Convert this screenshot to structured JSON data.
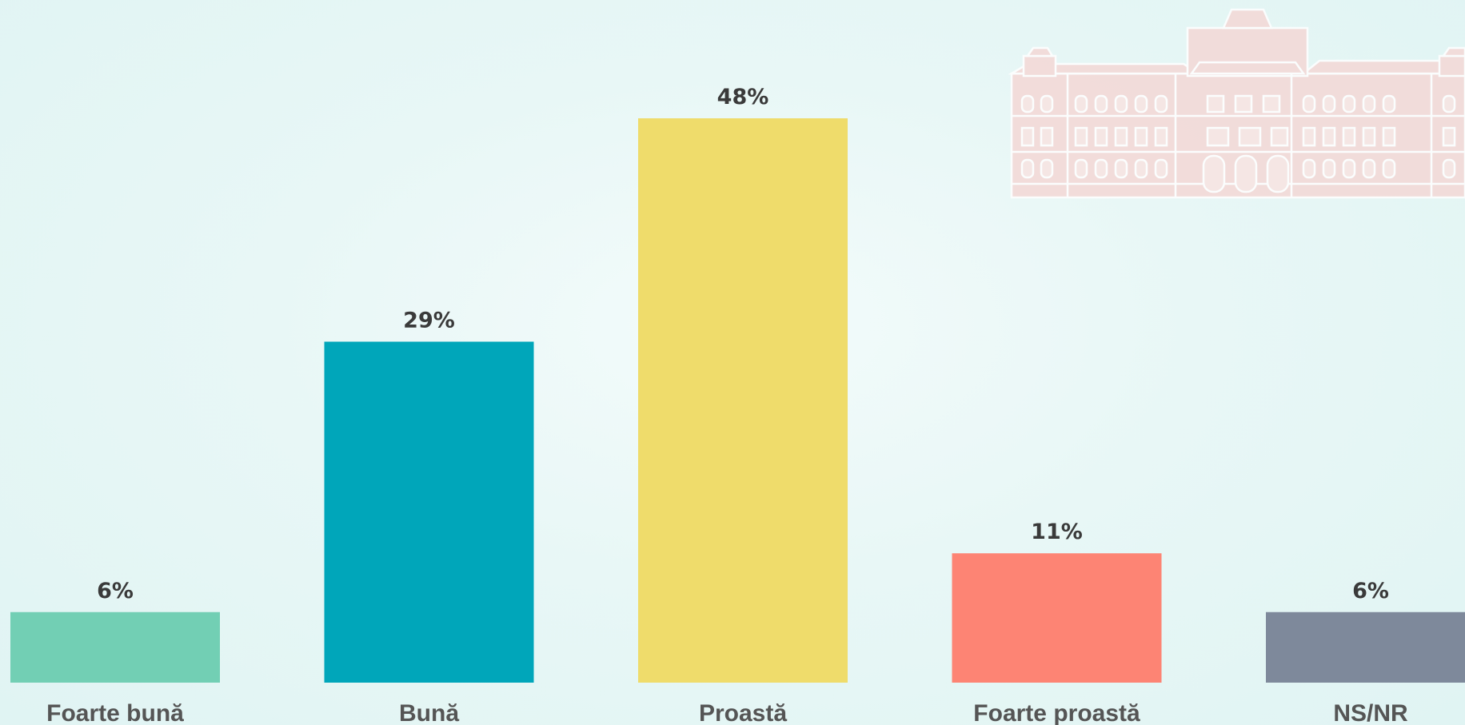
{
  "chart_data": {
    "type": "bar",
    "categories": [
      "Foarte bună",
      "Bună",
      "Proastă",
      "Foarte proastă",
      "NS/NR"
    ],
    "values": [
      6,
      29,
      48,
      11,
      6
    ],
    "data_labels": [
      "6%",
      "29%",
      "48%",
      "11%",
      "6%"
    ],
    "unit": "%",
    "colors": [
      "#72cfb4",
      "#00a6ba",
      "#efdc6b",
      "#fd8474",
      "#7e899b"
    ],
    "title": "",
    "xlabel": "",
    "ylabel": "",
    "ylim": [
      0,
      48
    ],
    "grid": false,
    "legend": "none"
  },
  "watermark": {
    "icon": "palace-building-icon",
    "color": "#f4d4d2"
  }
}
